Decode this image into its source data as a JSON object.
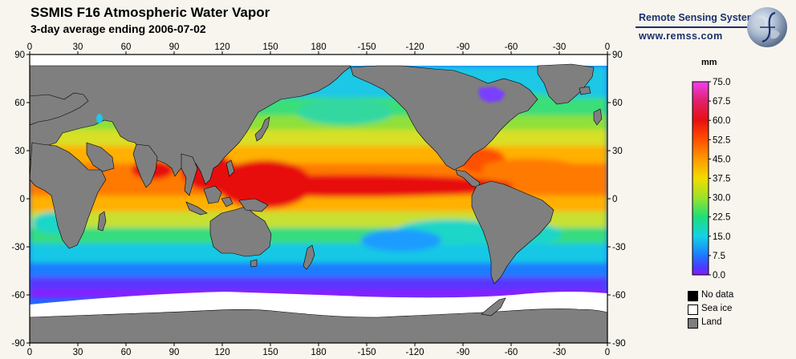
{
  "title": "SSMIS F16 Atmospheric Water Vapor",
  "subtitle": "3-day average ending 2006-07-02",
  "logo": {
    "name": "Remote Sensing Systems",
    "url": "www.remss.com"
  },
  "axes": {
    "top_lon_labels": [
      "0",
      "30",
      "60",
      "90",
      "120",
      "150",
      "180",
      "-150",
      "-120",
      "-90",
      "-60",
      "-30",
      "0"
    ],
    "bottom_lon_labels": [
      "0",
      "30",
      "60",
      "90",
      "120",
      "150",
      "180",
      "-150",
      "-120",
      "-90",
      "-60",
      "-30",
      "0"
    ],
    "left_lat_labels": [
      "90",
      "60",
      "30",
      "0",
      "-30",
      "-60",
      "-90"
    ],
    "right_lat_labels": [
      "90",
      "60",
      "30",
      "0",
      "-30",
      "-60",
      "-90"
    ]
  },
  "colorbar": {
    "unit": "mm",
    "labels": [
      "75.0",
      "67.5",
      "60.0",
      "52.5",
      "45.0",
      "37.5",
      "30.0",
      "22.5",
      "15.0",
      "7.5",
      "0.0"
    ],
    "stops": [
      "#f040f0",
      "#e0206a",
      "#e81010",
      "#ff5000",
      "#ff9900",
      "#f2dc00",
      "#9ce22a",
      "#1ede7a",
      "#12d2e6",
      "#1e78ff",
      "#4a3aff",
      "#8a1aff"
    ]
  },
  "legend": [
    {
      "label": "No data",
      "color": "#000000"
    },
    {
      "label": "Sea ice",
      "color": "#ffffff"
    },
    {
      "label": "Land",
      "color": "#7f7f7f"
    }
  ],
  "colors": {
    "land": "#7f7f7f",
    "ice": "#ffffff",
    "no_data": "#000000"
  }
}
